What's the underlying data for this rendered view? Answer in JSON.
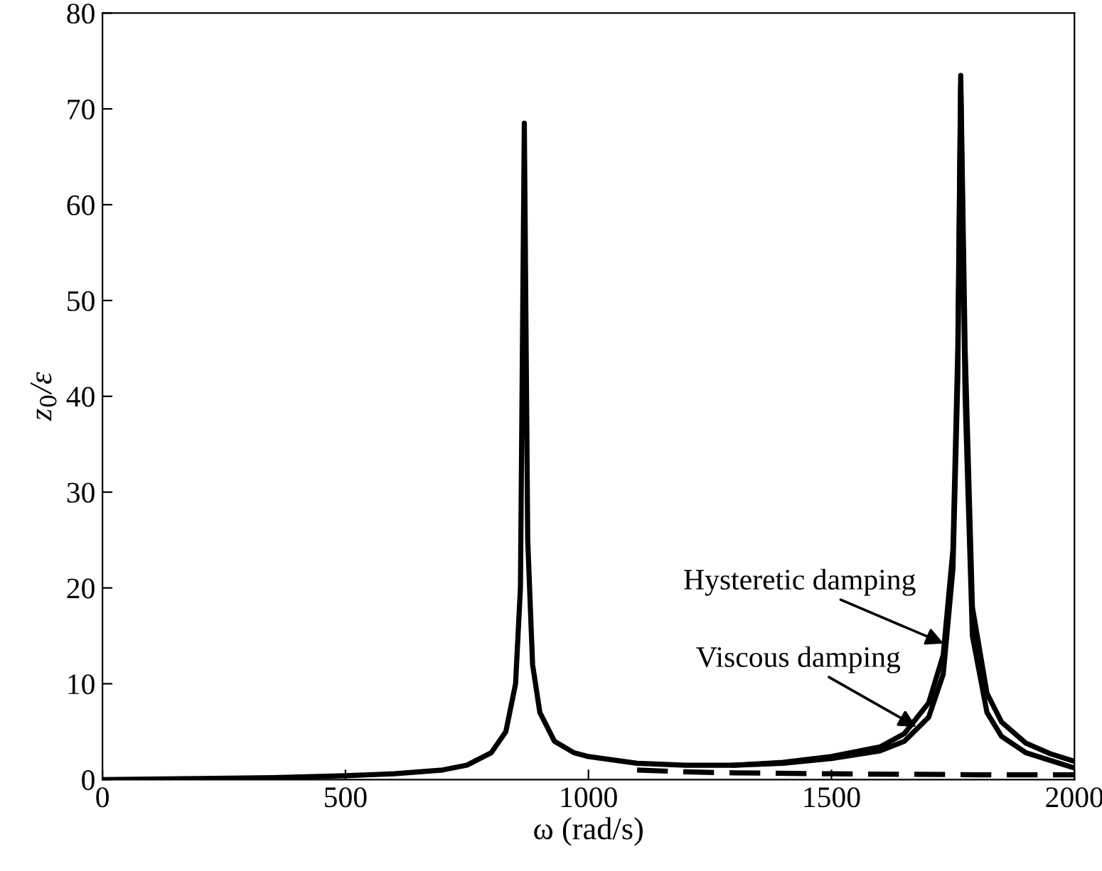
{
  "chart_data": {
    "type": "line",
    "xlabel": "ω (rad/s)",
    "ylabel": "z$_{0}$/ε",
    "xlim": [
      0,
      2000
    ],
    "ylim": [
      0,
      80
    ],
    "xticks": [
      0,
      500,
      1000,
      1500,
      2000
    ],
    "yticks": [
      0,
      10,
      20,
      30,
      40,
      50,
      60,
      70,
      80
    ],
    "grid": false,
    "legend": false,
    "marker": "none",
    "series": [
      {
        "color": "#000000",
        "line_style": "solid",
        "x": [
          0,
          200,
          350,
          500,
          600,
          700,
          750,
          800,
          830,
          850,
          860,
          868,
          875,
          885,
          900,
          930,
          970,
          1000,
          1100,
          1200,
          1300,
          1400,
          1500,
          1600,
          1650,
          1700,
          1730,
          1750,
          1760,
          1766,
          1775,
          1790,
          1820,
          1850,
          1900,
          1950,
          2000
        ],
        "values": [
          0,
          0.1,
          0.2,
          0.4,
          0.6,
          1.0,
          1.5,
          2.8,
          5,
          10,
          20,
          68.5,
          25,
          12,
          7,
          4,
          2.8,
          2.4,
          1.7,
          1.5,
          1.5,
          1.7,
          2.2,
          3.0,
          4.0,
          6.5,
          11,
          22,
          42,
          72.5,
          40,
          15,
          7,
          4.5,
          2.8,
          2.0,
          1.2
        ]
      },
      {
        "color": "#000000",
        "line_style": "solid",
        "x": [
          1300,
          1400,
          1500,
          1600,
          1650,
          1700,
          1730,
          1750,
          1760,
          1766,
          1775,
          1790,
          1820,
          1850,
          1900,
          1950,
          2000
        ],
        "values": [
          1.5,
          1.8,
          2.4,
          3.4,
          4.8,
          8,
          13,
          24,
          45,
          73.5,
          45,
          18,
          9,
          6,
          3.8,
          2.7,
          1.9
        ]
      },
      {
        "color": "#000000",
        "line_style": "dashed",
        "x": [
          1100,
          1200,
          1300,
          1500,
          1800,
          2000
        ],
        "values": [
          1.0,
          0.8,
          0.7,
          0.6,
          0.5,
          0.5
        ]
      }
    ],
    "annotations": [
      {
        "text": "Hysteretic damping",
        "x": 1731,
        "y": 14.2
      },
      {
        "text": "Viscous damping",
        "x": 1675,
        "y": 5.5
      }
    ]
  }
}
